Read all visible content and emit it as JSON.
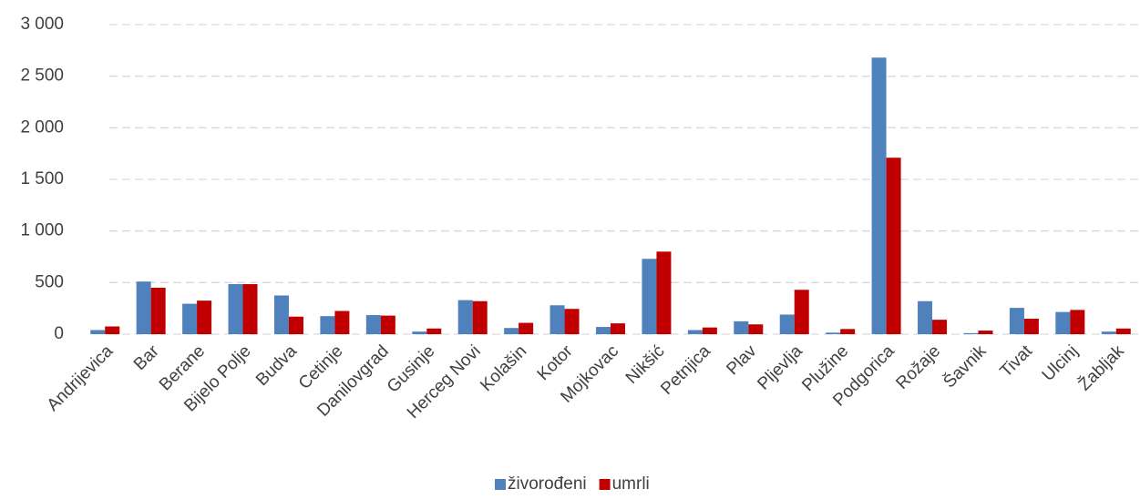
{
  "chart_data": {
    "type": "bar",
    "categories": [
      "Andrijevica",
      "Bar",
      "Berane",
      "Bijelo Polje",
      "Budva",
      "Cetinje",
      "Danilovgrad",
      "Gusinje",
      "Herceg Novi",
      "Kolašin",
      "Kotor",
      "Mojkovac",
      "Nikšić",
      "Petnjica",
      "Plav",
      "Pljevlja",
      "Plužine",
      "Podgorica",
      "Rožaje",
      "Šavnik",
      "Tivat",
      "Ulcinj",
      "Žabljak"
    ],
    "series": [
      {
        "name": "živorođeni",
        "color": "#4f81bd",
        "values": [
          40,
          510,
          295,
          485,
          375,
          175,
          185,
          25,
          330,
          60,
          280,
          70,
          730,
          40,
          125,
          190,
          15,
          2680,
          320,
          10,
          255,
          215,
          25
        ]
      },
      {
        "name": "umrli",
        "color": "#c00000",
        "values": [
          75,
          450,
          325,
          485,
          170,
          225,
          180,
          55,
          320,
          110,
          245,
          105,
          800,
          65,
          95,
          430,
          50,
          1710,
          140,
          35,
          150,
          235,
          55
        ]
      }
    ],
    "ylim": [
      0,
      3000
    ],
    "yticks": [
      0,
      500,
      {
        "value": 1000,
        "label": "1 000"
      },
      {
        "value": 1500,
        "label": "1 500"
      },
      {
        "value": 2000,
        "label": "2 000"
      },
      {
        "value": 2500,
        "label": "2 500"
      },
      {
        "value": 3000,
        "label": "3 000"
      }
    ],
    "grid": true,
    "legend": "bottom"
  }
}
